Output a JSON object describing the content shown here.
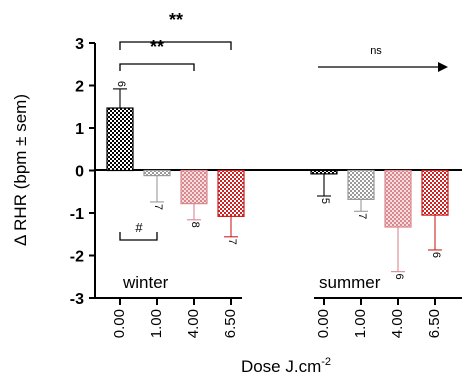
{
  "chart_data": {
    "type": "bar",
    "ylabel": "Δ RHR (bpm ± sem)",
    "xlabel": "Dose J.cm",
    "xlabel_superscript": "-2",
    "ylim": [
      -3,
      3
    ],
    "yticks": [
      "3",
      "2",
      "1",
      "0",
      "-1",
      "-2",
      "-3"
    ],
    "grid": false,
    "groups": [
      {
        "name": "winter",
        "bars": [
          {
            "dose": "0.00",
            "value": 1.47,
            "error": 0.45,
            "n": "6",
            "pattern": "pat-black",
            "color": "#000000"
          },
          {
            "dose": "1.00",
            "value": -0.12,
            "error": 0.62,
            "n": "7",
            "pattern": "pat-gray",
            "color": "#9a9a9a"
          },
          {
            "dose": "4.00",
            "value": -0.78,
            "error": 0.38,
            "n": "8",
            "pattern": "pat-pink",
            "color": "#d9888f"
          },
          {
            "dose": "6.50",
            "value": -1.08,
            "error": 0.48,
            "n": "7",
            "pattern": "pat-red",
            "color": "#cc2222"
          }
        ]
      },
      {
        "name": "summer",
        "bars": [
          {
            "dose": "0.00",
            "value": -0.08,
            "error": 0.52,
            "n": "5",
            "pattern": "pat-black",
            "color": "#000000"
          },
          {
            "dose": "1.00",
            "value": -0.68,
            "error": 0.28,
            "n": "7",
            "pattern": "pat-gray",
            "color": "#9a9a9a"
          },
          {
            "dose": "4.00",
            "value": -1.33,
            "error": 1.05,
            "n": "6",
            "pattern": "pat-pink",
            "color": "#d9888f"
          },
          {
            "dose": "6.50",
            "value": -1.05,
            "error": 0.82,
            "n": "6",
            "pattern": "pat-red",
            "color": "#cc2222"
          }
        ]
      }
    ],
    "annotations": {
      "sig_1": "**",
      "sig_2": "**",
      "hash": "#",
      "ns": "ns"
    }
  }
}
